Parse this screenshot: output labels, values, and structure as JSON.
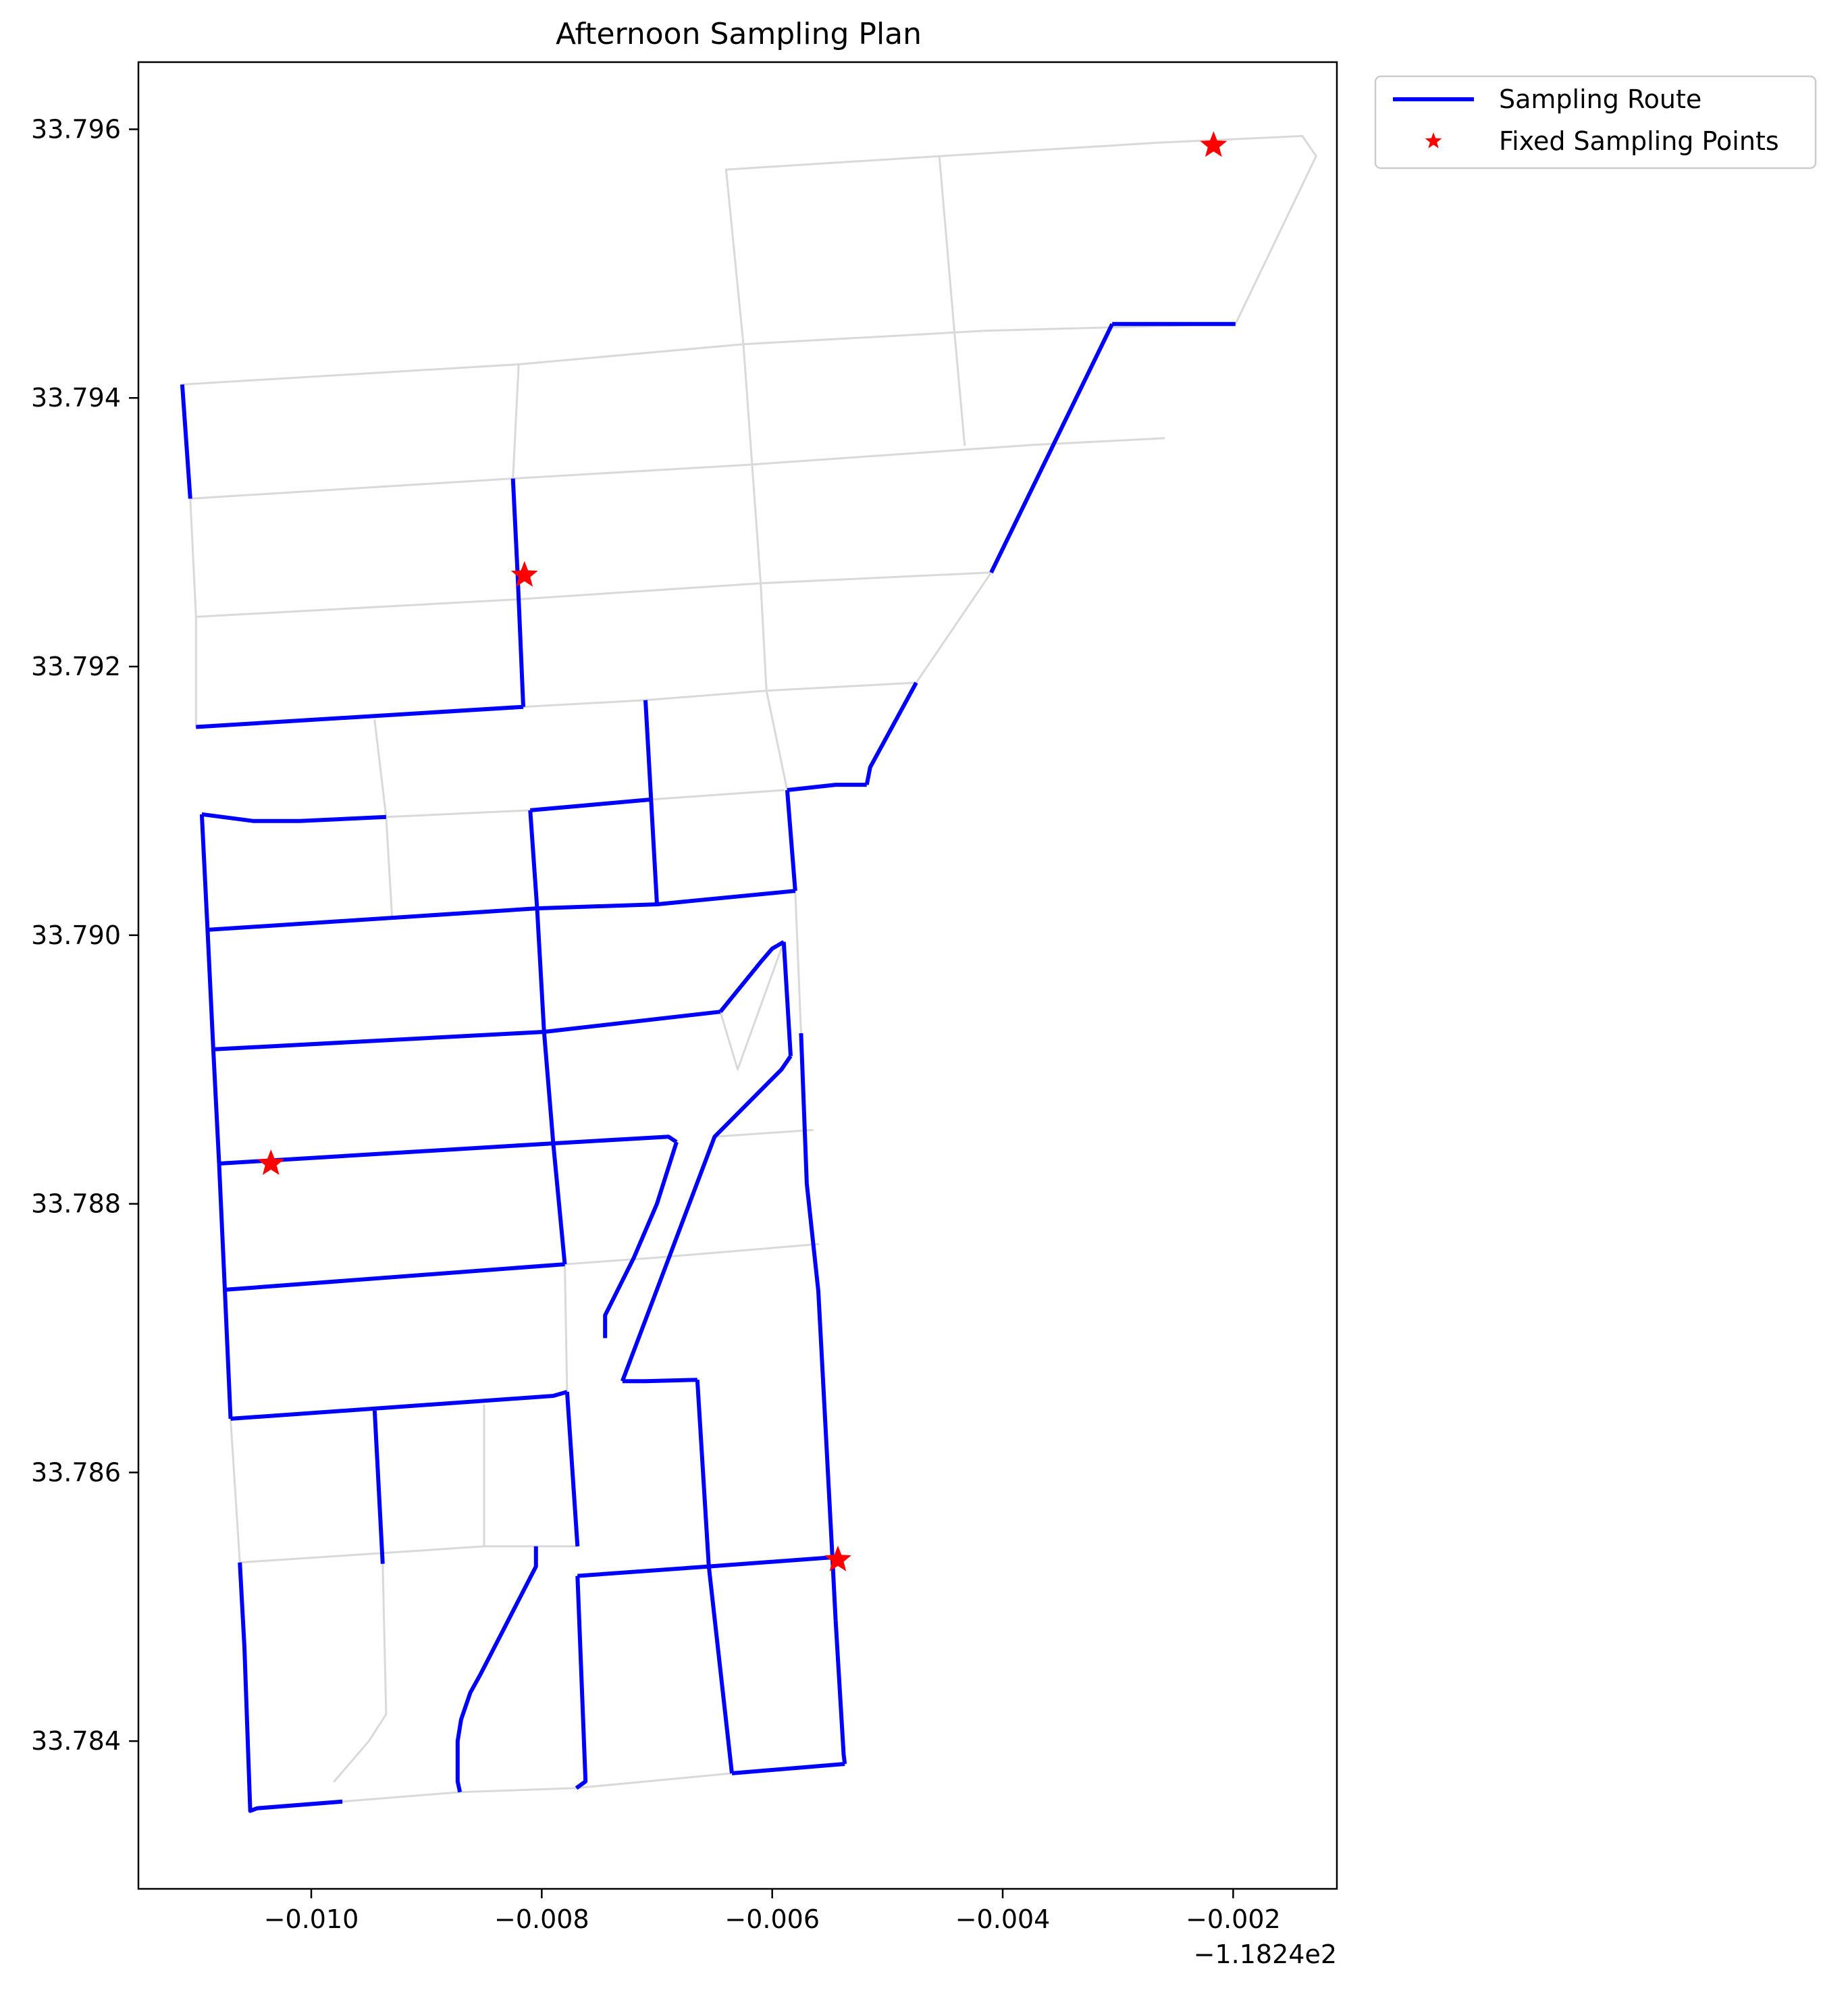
{
  "chart_data": {
    "type": "line",
    "title": "Afternoon Sampling Plan",
    "xlabel": "",
    "ylabel": "",
    "x_offset_label": "−1.1824e2",
    "xlim": [
      -0.0115,
      -0.0011
    ],
    "ylim": [
      33.7829,
      33.7965
    ],
    "x_ticks": [
      -0.01,
      -0.008,
      -0.006,
      -0.004,
      -0.002
    ],
    "x_tick_labels": [
      "−0.010",
      "−0.008",
      "−0.006",
      "−0.004",
      "−0.002"
    ],
    "y_ticks": [
      33.784,
      33.786,
      33.788,
      33.79,
      33.792,
      33.794,
      33.796
    ],
    "y_tick_labels": [
      "33.784",
      "33.786",
      "33.788",
      "33.790",
      "33.792",
      "33.794",
      "33.796"
    ],
    "grid": false,
    "legend_position": "outside-top-right",
    "legend": [
      {
        "label": "Sampling Route",
        "marker": "line",
        "color": "#0000ff"
      },
      {
        "label": "Fixed Sampling Points",
        "marker": "star",
        "color": "#ff0000"
      }
    ],
    "colors": {
      "route": "#0000ff",
      "street": "#d9d9d9",
      "point": "#ff0000"
    },
    "series": [
      {
        "name": "Sampling Route",
        "segments": [
          [
            [
              -0.01112,
              33.7941
            ],
            [
              -0.01105,
              33.79325
            ]
          ],
          [
            [
              -0.00825,
              33.7934
            ],
            [
              -0.00821,
              33.7927
            ],
            [
              -0.00816,
              33.7917
            ]
          ],
          [
            [
              -0.011,
              33.79155
            ],
            [
              -0.00816,
              33.7917
            ]
          ],
          [
            [
              -0.01095,
              33.7909
            ],
            [
              -0.0105,
              33.79085
            ],
            [
              -0.0101,
              33.79085
            ],
            [
              -0.00935,
              33.79088
            ]
          ],
          [
            [
              -0.0081,
              33.79093
            ],
            [
              -0.00705,
              33.79101
            ]
          ],
          [
            [
              -0.0071,
              33.79175
            ],
            [
              -0.007,
              33.79023
            ]
          ],
          [
            [
              -0.0081,
              33.79093
            ],
            [
              -0.00804,
              33.7902
            ]
          ],
          [
            [
              -0.01095,
              33.7909
            ],
            [
              -0.0109,
              33.79004
            ]
          ],
          [
            [
              -0.0109,
              33.79004
            ],
            [
              -0.00804,
              33.7902
            ],
            [
              -0.007,
              33.79023
            ],
            [
              -0.0058,
              33.79033
            ]
          ],
          [
            [
              -0.00587,
              33.79108
            ],
            [
              -0.0058,
              33.79033
            ]
          ],
          [
            [
              -0.00587,
              33.79108
            ],
            [
              -0.00545,
              33.79112
            ],
            [
              -0.00518,
              33.79112
            ]
          ],
          [
            [
              -0.00518,
              33.79112
            ],
            [
              -0.00515,
              33.79125
            ],
            [
              -0.00475,
              33.79188
            ]
          ],
          [
            [
              -0.0041,
              33.7927
            ],
            [
              -0.00305,
              33.79455
            ]
          ],
          [
            [
              -0.00305,
              33.79455
            ],
            [
              -0.00198,
              33.79455
            ]
          ],
          [
            [
              -0.0109,
              33.79004
            ],
            [
              -0.01085,
              33.78915
            ]
          ],
          [
            [
              -0.01085,
              33.78915
            ],
            [
              -0.00798,
              33.78928
            ],
            [
              -0.00645,
              33.78943
            ]
          ],
          [
            [
              -0.00804,
              33.7902
            ],
            [
              -0.00798,
              33.78928
            ]
          ],
          [
            [
              -0.00645,
              33.78943
            ],
            [
              -0.0061,
              33.7898
            ],
            [
              -0.006,
              33.7899
            ],
            [
              -0.0059,
              33.78995
            ]
          ],
          [
            [
              -0.0059,
              33.78995
            ],
            [
              -0.00584,
              33.7891
            ]
          ],
          [
            [
              -0.00584,
              33.7891
            ],
            [
              -0.00592,
              33.789
            ],
            [
              -0.0065,
              33.7885
            ],
            [
              -0.0073,
              33.78668
            ]
          ],
          [
            [
              -0.01085,
              33.78915
            ],
            [
              -0.0108,
              33.7883
            ]
          ],
          [
            [
              -0.0108,
              33.7883
            ],
            [
              -0.0079,
              33.78845
            ],
            [
              -0.0069,
              33.7885
            ],
            [
              -0.00683,
              33.78846
            ]
          ],
          [
            [
              -0.00798,
              33.78928
            ],
            [
              -0.0079,
              33.78845
            ]
          ],
          [
            [
              -0.00683,
              33.78846
            ],
            [
              -0.007,
              33.788
            ],
            [
              -0.0072,
              33.7876
            ],
            [
              -0.00745,
              33.78717
            ],
            [
              -0.00745,
              33.787
            ]
          ],
          [
            [
              -0.0108,
              33.7883
            ],
            [
              -0.01075,
              33.78736
            ]
          ],
          [
            [
              -0.01075,
              33.78736
            ],
            [
              -0.0078,
              33.78755
            ]
          ],
          [
            [
              -0.0079,
              33.78845
            ],
            [
              -0.0078,
              33.78755
            ]
          ],
          [
            [
              -0.01075,
              33.78736
            ],
            [
              -0.0107,
              33.7864
            ]
          ],
          [
            [
              -0.0107,
              33.7864
            ],
            [
              -0.0079,
              33.78657
            ],
            [
              -0.00778,
              33.7866
            ]
          ],
          [
            [
              -0.00778,
              33.7866
            ],
            [
              -0.00769,
              33.78545
            ]
          ],
          [
            [
              -0.00945,
              33.78646
            ],
            [
              -0.00938,
              33.78532
            ]
          ],
          [
            [
              -0.0073,
              33.78668
            ],
            [
              -0.0071,
              33.78668
            ],
            [
              -0.00665,
              33.78669
            ]
          ],
          [
            [
              -0.00665,
              33.78669
            ],
            [
              -0.00655,
              33.7853
            ]
          ],
          [
            [
              -0.00655,
              33.7853
            ],
            [
              -0.00635,
              33.78376
            ]
          ],
          [
            [
              -0.00575,
              33.78927
            ],
            [
              -0.0057,
              33.78815
            ],
            [
              -0.0056,
              33.78735
            ],
            [
              -0.00548,
              33.7854
            ],
            [
              -0.00545,
              33.7849
            ]
          ],
          [
            [
              -0.00545,
              33.7849
            ],
            [
              -0.00538,
              33.7839
            ],
            [
              -0.00537,
              33.78383
            ]
          ],
          [
            [
              -0.00769,
              33.78523
            ],
            [
              -0.00655,
              33.7853
            ],
            [
              -0.00545,
              33.78537
            ]
          ],
          [
            [
              -0.00769,
              33.78523
            ],
            [
              -0.00762,
              33.7837
            ],
            [
              -0.0077,
              33.78365
            ]
          ],
          [
            [
              -0.00635,
              33.78376
            ],
            [
              -0.00537,
              33.78383
            ]
          ],
          [
            [
              -0.00805,
              33.78545
            ],
            [
              -0.00805,
              33.7853
            ],
            [
              -0.00823,
              33.785
            ],
            [
              -0.00853,
              33.7845
            ],
            [
              -0.00862,
              33.78436
            ],
            [
              -0.0087,
              33.78416
            ],
            [
              -0.00873,
              33.784
            ],
            [
              -0.00873,
              33.7837
            ],
            [
              -0.00871,
              33.78362
            ]
          ],
          [
            [
              -0.01062,
              33.78533
            ],
            [
              -0.01058,
              33.7847
            ],
            [
              -0.01053,
              33.78348
            ],
            [
              -0.01047,
              33.7835
            ],
            [
              -0.00973,
              33.78355
            ]
          ]
        ]
      },
      {
        "name": "Street Network",
        "segments": [
          [
            [
              -0.01112,
              33.7941
            ],
            [
              -0.0082,
              33.79425
            ],
            [
              -0.00625,
              33.7944
            ],
            [
              -0.00415,
              33.7945
            ],
            [
              -0.00198,
              33.79455
            ]
          ],
          [
            [
              -0.01105,
              33.79325
            ],
            [
              -0.00825,
              33.7934
            ],
            [
              -0.00625,
              33.7935
            ],
            [
              -0.00375,
              33.79365
            ],
            [
              -0.0026,
              33.7937
            ]
          ],
          [
            [
              -0.011,
              33.79237
            ],
            [
              -0.00822,
              33.7925
            ],
            [
              -0.0061,
              33.79262
            ],
            [
              -0.0041,
              33.7927
            ]
          ],
          [
            [
              -0.00816,
              33.7917
            ],
            [
              -0.0071,
              33.79175
            ],
            [
              -0.00605,
              33.79182
            ],
            [
              -0.00475,
              33.79188
            ]
          ],
          [
            [
              -0.00935,
              33.79088
            ],
            [
              -0.0081,
              33.79093
            ]
          ],
          [
            [
              -0.00705,
              33.79101
            ],
            [
              -0.0059,
              33.79108
            ]
          ],
          [
            [
              -0.0064,
              33.7957
            ],
            [
              -0.00625,
              33.7944
            ],
            [
              -0.0061,
              33.79262
            ],
            [
              -0.00605,
              33.79182
            ],
            [
              -0.00587,
              33.79108
            ]
          ],
          [
            [
              -0.0064,
              33.7957
            ],
            [
              -0.00455,
              33.7958
            ],
            [
              -0.00265,
              33.7959
            ],
            [
              -0.0014,
              33.79595
            ],
            [
              -0.00128,
              33.7958
            ],
            [
              -0.00198,
              33.79455
            ]
          ],
          [
            [
              -0.00455,
              33.7958
            ],
            [
              -0.00442,
              33.7945
            ],
            [
              -0.00433,
              33.79365
            ]
          ],
          [
            [
              -0.0041,
              33.7927
            ],
            [
              -0.00475,
              33.79188
            ]
          ],
          [
            [
              -0.0082,
              33.79425
            ],
            [
              -0.00825,
              33.7934
            ]
          ],
          [
            [
              -0.011,
              33.79237
            ],
            [
              -0.01105,
              33.79325
            ]
          ],
          [
            [
              -0.011,
              33.79237
            ],
            [
              -0.011,
              33.79155
            ]
          ],
          [
            [
              -0.00945,
              33.7916
            ],
            [
              -0.00935,
              33.79088
            ],
            [
              -0.0093,
              33.79015
            ]
          ],
          [
            [
              -0.0058,
              33.79033
            ],
            [
              -0.00575,
              33.78927
            ]
          ],
          [
            [
              -0.00645,
              33.78943
            ],
            [
              -0.0063,
              33.789
            ],
            [
              -0.0059,
              33.78995
            ]
          ],
          [
            [
              -0.0065,
              33.7885
            ],
            [
              -0.00565,
              33.78855
            ]
          ],
          [
            [
              -0.0078,
              33.78755
            ],
            [
              -0.007,
              33.7876
            ],
            [
              -0.0056,
              33.7877
            ]
          ],
          [
            [
              -0.0078,
              33.78755
            ],
            [
              -0.00778,
              33.7866
            ]
          ],
          [
            [
              -0.0079,
              33.78845
            ],
            [
              -0.0078,
              33.78755
            ]
          ],
          [
            [
              -0.0107,
              33.7864
            ],
            [
              -0.01062,
              33.78533
            ]
          ],
          [
            [
              -0.01062,
              33.78533
            ],
            [
              -0.00938,
              33.7854
            ],
            [
              -0.0085,
              33.78545
            ],
            [
              -0.00769,
              33.78545
            ]
          ],
          [
            [
              -0.0085,
              33.7865
            ],
            [
              -0.0085,
              33.78545
            ]
          ],
          [
            [
              -0.00938,
              33.78532
            ],
            [
              -0.00935,
              33.7842
            ],
            [
              -0.0095,
              33.784
            ],
            [
              -0.0098,
              33.7837
            ]
          ],
          [
            [
              -0.00973,
              33.78355
            ],
            [
              -0.00871,
              33.78362
            ],
            [
              -0.0077,
              33.78365
            ],
            [
              -0.00635,
              33.78376
            ]
          ]
        ]
      },
      {
        "name": "Fixed Sampling Points",
        "points": [
          [
            -0.00217,
            33.79588
          ],
          [
            -0.00815,
            33.79268
          ],
          [
            -0.01035,
            33.7883
          ],
          [
            -0.00543,
            33.78535
          ]
        ]
      }
    ]
  }
}
